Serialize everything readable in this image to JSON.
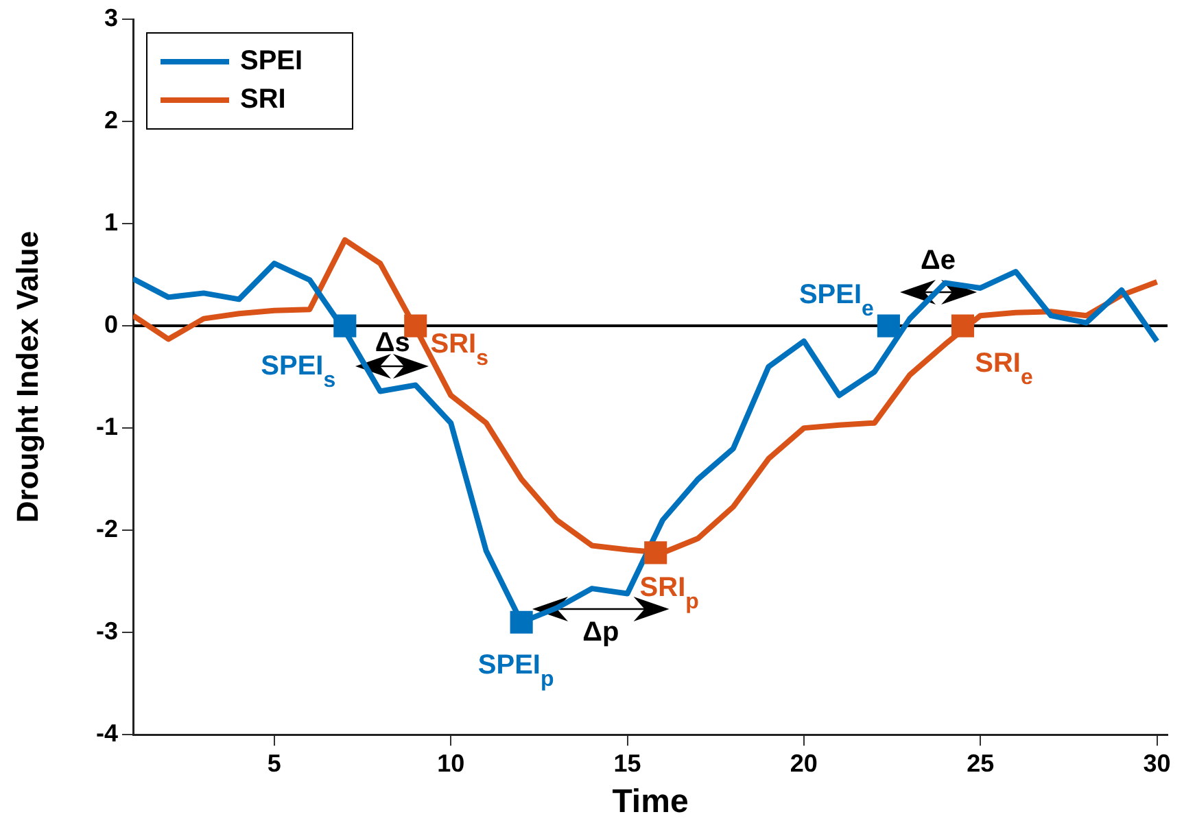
{
  "chart_data": {
    "type": "line",
    "xlabel": "Time",
    "ylabel": "Drought Index Value",
    "x": [
      1,
      2,
      3,
      4,
      5,
      6,
      7,
      8,
      9,
      10,
      11,
      12,
      13,
      14,
      15,
      16,
      17,
      18,
      19,
      20,
      21,
      22,
      23,
      24,
      25,
      26,
      27,
      28,
      29,
      30
    ],
    "series": [
      {
        "name": "SPEI",
        "color": "#0072bd",
        "values": [
          0.46,
          0.28,
          0.32,
          0.26,
          0.61,
          0.45,
          -0.05,
          -0.64,
          -0.58,
          -0.95,
          -2.2,
          -2.9,
          -2.76,
          -2.57,
          -2.62,
          -1.9,
          -1.5,
          -1.2,
          -0.4,
          -0.15,
          -0.68,
          -0.45,
          0.07,
          0.42,
          0.37,
          0.53,
          0.1,
          0.03,
          0.35,
          -0.15
        ]
      },
      {
        "name": "SRI",
        "color": "#d95319",
        "values": [
          0.1,
          -0.13,
          0.07,
          0.12,
          0.15,
          0.16,
          0.84,
          0.61,
          -0.02,
          -0.68,
          -0.95,
          -1.5,
          -1.9,
          -2.15,
          -2.19,
          -2.22,
          -2.08,
          -1.77,
          -1.3,
          -1.0,
          -0.97,
          -0.95,
          -0.48,
          -0.18,
          0.1,
          0.13,
          0.14,
          0.1,
          0.3,
          0.43
        ]
      },
      {
        "type": "scatter",
        "color": "#0072bd",
        "marker": "square",
        "x": [
          7,
          12,
          22.4
        ],
        "values": [
          0,
          -2.9,
          0
        ]
      },
      {
        "type": "scatter",
        "color": "#d95319",
        "marker": "square",
        "x": [
          9,
          15.8,
          24.5
        ],
        "values": [
          0,
          -2.22,
          0
        ]
      }
    ],
    "xlim": [
      1,
      30.3
    ],
    "xticks": [
      5,
      10,
      15,
      20,
      25,
      30
    ],
    "ylim": [
      -4,
      3
    ],
    "yticks": [
      -4,
      -3,
      -2,
      -1,
      0,
      1,
      2,
      3
    ],
    "grid": false,
    "legend": "top left",
    "marker": "none",
    "line_style": "solid",
    "ref_lines": [
      {
        "axis": "y",
        "value": 0,
        "color": "#000000"
      }
    ],
    "annotations": [
      {
        "text": "SPEI$_{s}$",
        "x": 7,
        "y": 0
      },
      {
        "text": "SRI$_{s}$",
        "x": 9,
        "y": 0
      },
      "Δs",
      {
        "text": "SPEI$_{p}$",
        "x": 12,
        "y": -2.9
      },
      {
        "text": "SRI$_{p}$",
        "x": 15.8,
        "y": -2.22
      },
      "Δp",
      {
        "text": "SPEI$_{e}$",
        "x": 22.4,
        "y": 0
      },
      {
        "text": "SRI$_{e}$",
        "x": 24.5,
        "y": 0
      },
      "Δe"
    ]
  }
}
